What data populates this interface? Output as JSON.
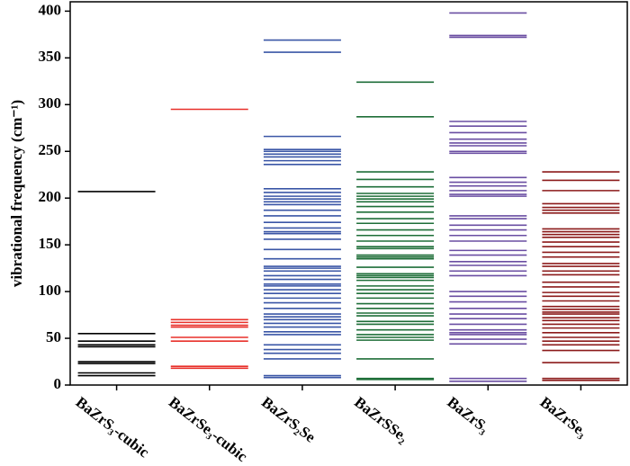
{
  "chart_data": {
    "type": "levels",
    "ylabel": "vibrational frequency (cm⁻¹)",
    "categories": [
      "BaZrS₃-cubic",
      "BaZrSe₃-cubic",
      "BaZrS₂Se",
      "BaZrSSe₂",
      "BaZrS₃",
      "BaZrSe₃"
    ],
    "levels": [
      {
        "color": "#000000",
        "values": [
          207,
          55,
          47,
          43,
          41,
          25,
          23,
          13,
          10
        ]
      },
      {
        "color": "#e8302a",
        "values": [
          295,
          70,
          67,
          64,
          62,
          51,
          47,
          20,
          18
        ]
      },
      {
        "color": "#3a56a6",
        "values": [
          369,
          356,
          266,
          252,
          250,
          247,
          244,
          240,
          236,
          210,
          206,
          202,
          199,
          196,
          193,
          187,
          181,
          174,
          168,
          164,
          162,
          156,
          145,
          135,
          127,
          125,
          122,
          117,
          113,
          108,
          106,
          102,
          98,
          93,
          88,
          82,
          76,
          73,
          70,
          66,
          62,
          57,
          54,
          43,
          38,
          34,
          28,
          10,
          8
        ]
      },
      {
        "color": "#1e6e38",
        "values": [
          324,
          287,
          228,
          220,
          212,
          205,
          202,
          199,
          196,
          191,
          185,
          178,
          173,
          166,
          160,
          154,
          148,
          146,
          139,
          137,
          135,
          126,
          119,
          117,
          115,
          112,
          106,
          102,
          98,
          93,
          87,
          82,
          77,
          74,
          68,
          65,
          59,
          54,
          51,
          48,
          28,
          7,
          6
        ]
      },
      {
        "color": "#6a4ea2",
        "values": [
          398,
          374,
          372,
          282,
          277,
          270,
          263,
          259,
          256,
          250,
          248,
          222,
          217,
          213,
          208,
          204,
          202,
          181,
          178,
          171,
          166,
          160,
          154,
          144,
          139,
          132,
          128,
          122,
          117,
          100,
          95,
          89,
          82,
          76,
          71,
          65,
          59,
          56,
          54,
          49,
          44,
          7,
          4
        ]
      },
      {
        "color": "#8b1a1a",
        "values": [
          228,
          219,
          208,
          194,
          190,
          187,
          184,
          167,
          164,
          161,
          158,
          153,
          148,
          142,
          137,
          130,
          127,
          122,
          118,
          110,
          105,
          99,
          95,
          90,
          84,
          81,
          78,
          76,
          72,
          69,
          65,
          61,
          56,
          51,
          47,
          43,
          37,
          24,
          7,
          5
        ]
      }
    ],
    "ylim": [
      0,
      410
    ],
    "yticks": [
      0,
      50,
      100,
      150,
      200,
      250,
      300,
      350,
      400
    ]
  }
}
